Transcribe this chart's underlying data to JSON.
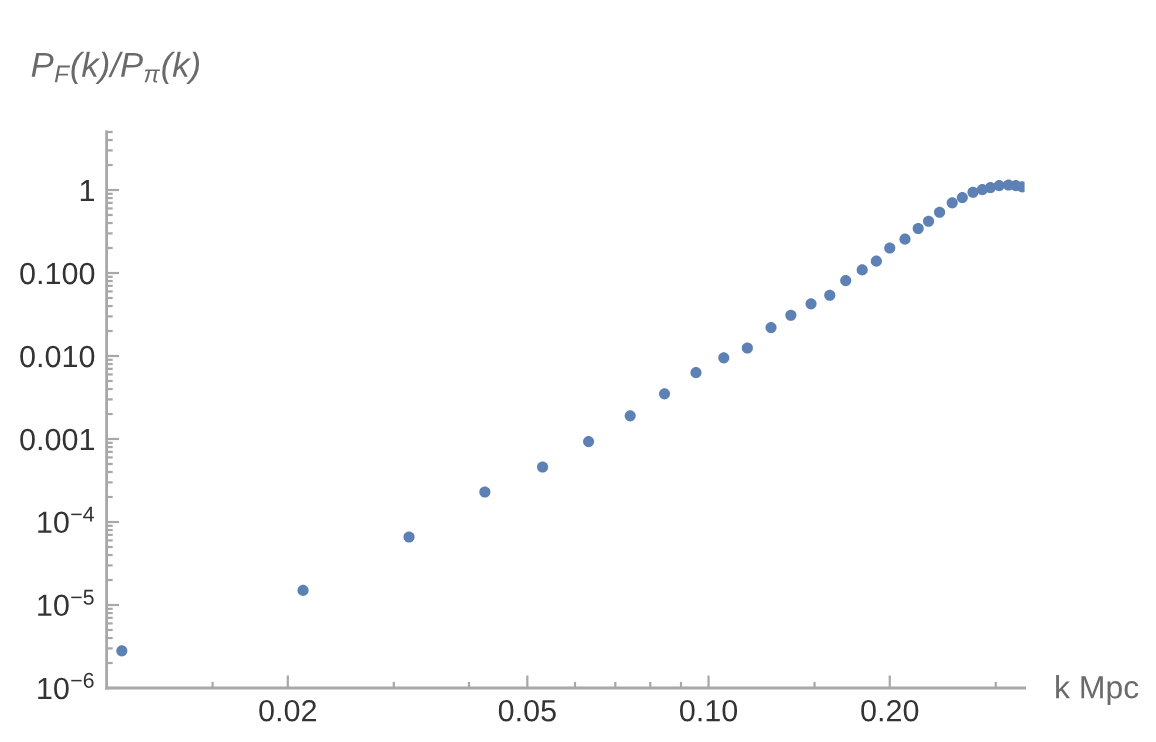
{
  "chart_data": {
    "type": "scatter",
    "ylabel": "P$_{F}$(k)/P$_{π}$(k)",
    "xlabel": "k Mpc",
    "log": "xy",
    "marker": "circle",
    "x": [
      0.0106,
      0.0212,
      0.0318,
      0.0425,
      0.053,
      0.0632,
      0.0741,
      0.0845,
      0.0953,
      0.106,
      0.116,
      0.127,
      0.137,
      0.148,
      0.159,
      0.169,
      0.18,
      0.19,
      0.2,
      0.212,
      0.223,
      0.232,
      0.242,
      0.254,
      0.264,
      0.275,
      0.285,
      0.294,
      0.304,
      0.315,
      0.324,
      0.332
    ],
    "series": [
      {
        "color": "#5e81b5",
        "values": [
          2.8e-06,
          1.5e-05,
          6.6e-05,
          0.00023,
          0.00046,
          0.00093,
          0.0019,
          0.0035,
          0.0063,
          0.0095,
          0.0125,
          0.022,
          0.031,
          0.0425,
          0.054,
          0.081,
          0.109,
          0.139,
          0.2,
          0.256,
          0.344,
          0.42,
          0.54,
          0.7,
          0.81,
          0.94,
          1.01,
          1.07,
          1.13,
          1.15,
          1.13,
          1.09
        ]
      }
    ],
    "xlim": [
      0.01,
      0.335
    ],
    "ylim": [
      1e-06,
      5
    ],
    "xticks": [
      0.02,
      0.05,
      {
        "value": 0.1,
        "label": "0.10"
      },
      {
        "value": 0.2,
        "label": "0.20"
      },
      {
        "value": 0.015,
        "label": null
      },
      {
        "value": 0.03,
        "label": null
      },
      {
        "value": 0.04,
        "label": null
      },
      {
        "value": 0.06,
        "label": null
      },
      {
        "value": 0.07,
        "label": null
      },
      {
        "value": 0.08,
        "label": null
      },
      {
        "value": 0.09,
        "label": null
      },
      {
        "value": 0.15,
        "label": null
      },
      {
        "value": 0.3,
        "label": null
      }
    ],
    "yticks": [
      {
        "value": 1e-06,
        "label": "10$^{−6}$"
      },
      {
        "value": 1e-05,
        "label": "10$^{−5}$"
      },
      {
        "value": 0.0001,
        "label": "10$^{−4}$"
      },
      0.001,
      {
        "value": 0.01,
        "label": "0.010"
      },
      {
        "value": 0.1,
        "label": "0.100"
      },
      1,
      {
        "value": 2e-06,
        "label": null
      },
      {
        "value": 3e-06,
        "label": null
      },
      {
        "value": 4e-06,
        "label": null
      },
      {
        "value": 5e-06,
        "label": null
      },
      {
        "value": 6e-06,
        "label": null
      },
      {
        "value": 7e-06,
        "label": null
      },
      {
        "value": 8e-06,
        "label": null
      },
      {
        "value": 9e-06,
        "label": null
      },
      {
        "value": 2e-05,
        "label": null
      },
      {
        "value": 3e-05,
        "label": null
      },
      {
        "value": 4e-05,
        "label": null
      },
      {
        "value": 5e-05,
        "label": null
      },
      {
        "value": 6e-05,
        "label": null
      },
      {
        "value": 7e-05,
        "label": null
      },
      {
        "value": 8e-05,
        "label": null
      },
      {
        "value": 9e-05,
        "label": null
      },
      {
        "value": 0.0002,
        "label": null
      },
      {
        "value": 0.0003,
        "label": null
      },
      {
        "value": 0.0004,
        "label": null
      },
      {
        "value": 0.0005,
        "label": null
      },
      {
        "value": 0.0006,
        "label": null
      },
      {
        "value": 0.0007,
        "label": null
      },
      {
        "value": 0.0008,
        "label": null
      },
      {
        "value": 0.0009,
        "label": null
      },
      {
        "value": 0.002,
        "label": null
      },
      {
        "value": 0.003,
        "label": null
      },
      {
        "value": 0.004,
        "label": null
      },
      {
        "value": 0.005,
        "label": null
      },
      {
        "value": 0.006,
        "label": null
      },
      {
        "value": 0.007,
        "label": null
      },
      {
        "value": 0.008,
        "label": null
      },
      {
        "value": 0.009,
        "label": null
      },
      {
        "value": 0.02,
        "label": null
      },
      {
        "value": 0.03,
        "label": null
      },
      {
        "value": 0.04,
        "label": null
      },
      {
        "value": 0.05,
        "label": null
      },
      {
        "value": 0.06,
        "label": null
      },
      {
        "value": 0.07,
        "label": null
      },
      {
        "value": 0.08,
        "label": null
      },
      {
        "value": 0.09,
        "label": null
      },
      {
        "value": 0.2,
        "label": null
      },
      {
        "value": 0.3,
        "label": null
      },
      {
        "value": 0.4,
        "label": null
      },
      {
        "value": 0.5,
        "label": null
      },
      {
        "value": 0.6,
        "label": null
      },
      {
        "value": 0.7,
        "label": null
      },
      {
        "value": 0.8,
        "label": null
      },
      {
        "value": 0.9,
        "label": null
      },
      {
        "value": 2,
        "label": null
      },
      {
        "value": 3,
        "label": null
      },
      {
        "value": 4,
        "label": null
      },
      {
        "value": 5,
        "label": null
      }
    ]
  }
}
